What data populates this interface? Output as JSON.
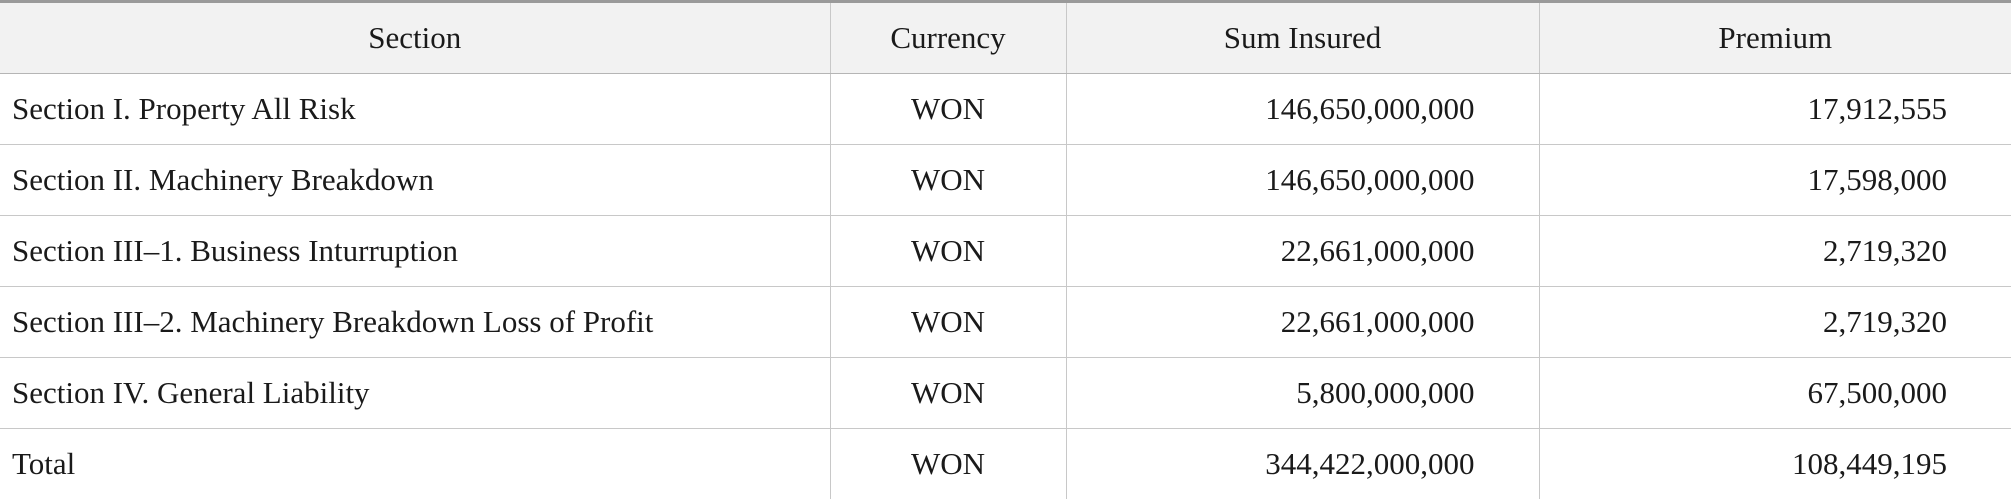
{
  "table": {
    "headers": {
      "section": "Section",
      "currency": "Currency",
      "sum_insured": "Sum Insured",
      "premium": "Premium"
    },
    "rows": [
      {
        "section": "Section I. Property All Risk",
        "currency": "WON",
        "sum_insured": "146,650,000,000",
        "premium": "17,912,555"
      },
      {
        "section": "Section II. Machinery Breakdown",
        "currency": "WON",
        "sum_insured": "146,650,000,000",
        "premium": "17,598,000"
      },
      {
        "section": "Section III–1. Business Inturruption",
        "currency": "WON",
        "sum_insured": "22,661,000,000",
        "premium": "2,719,320"
      },
      {
        "section": "Section III–2. Machinery Breakdown Loss of Profit",
        "currency": "WON",
        "sum_insured": "22,661,000,000",
        "premium": "2,719,320"
      },
      {
        "section": "Section IV. General Liability",
        "currency": "WON",
        "sum_insured": "5,800,000,000",
        "premium": "67,500,000"
      },
      {
        "section": "Total",
        "currency": "WON",
        "sum_insured": "344,422,000,000",
        "premium": "108,449,195"
      }
    ]
  }
}
